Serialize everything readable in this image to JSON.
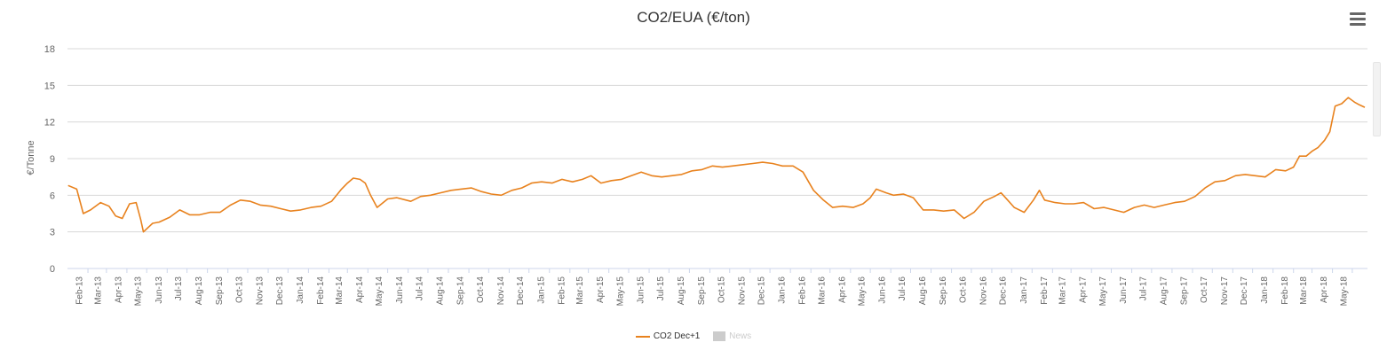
{
  "chart_data": {
    "type": "line",
    "title": "CO2/EUA (€/ton)",
    "ylabel": "€/Tonne",
    "xlabel": "",
    "ylim": [
      0,
      18
    ],
    "yticks": [
      0,
      3,
      6,
      9,
      12,
      15,
      18
    ],
    "grid": true,
    "legend_placement": "bottom-center",
    "x_tick_labels": [
      "Feb-13",
      "Mar-13",
      "Apr-13",
      "May-13",
      "Jun-13",
      "Jul-13",
      "Aug-13",
      "Sep-13",
      "Oct-13",
      "Nov-13",
      "Dec-13",
      "Jan-14",
      "Feb-14",
      "Mar-14",
      "Apr-14",
      "May-14",
      "Jun-14",
      "Jul-14",
      "Aug-14",
      "Sep-14",
      "Oct-14",
      "Nov-14",
      "Dec-14",
      "Jan-15",
      "Feb-15",
      "Mar-15",
      "Apr-15",
      "May-15",
      "Jun-15",
      "Jul-15",
      "Aug-15",
      "Sep-15",
      "Oct-15",
      "Nov-15",
      "Dec-15",
      "Jan-16",
      "Feb-16",
      "Mar-16",
      "Apr-16",
      "May-16",
      "Jun-16",
      "Jul-16",
      "Aug-16",
      "Sep-16",
      "Oct-16",
      "Nov-16",
      "Dec-16",
      "Jan-17",
      "Feb-17",
      "Mar-17",
      "Apr-17",
      "May-17",
      "Jun-17",
      "Jul-17",
      "Aug-17",
      "Sep-17",
      "Oct-17",
      "Nov-17",
      "Dec-17",
      "Jan-18",
      "Feb-18",
      "Mar-18",
      "Apr-18",
      "May-18"
    ],
    "series": [
      {
        "name": "CO2 Dec+1",
        "color": "#e8821e",
        "x": [
          "2013-01-02",
          "2013-01-15",
          "2013-01-25",
          "2013-02-05",
          "2013-02-20",
          "2013-03-05",
          "2013-03-15",
          "2013-03-25",
          "2013-04-05",
          "2013-04-15",
          "2013-04-22",
          "2013-04-26",
          "2013-05-10",
          "2013-05-20",
          "2013-06-05",
          "2013-06-20",
          "2013-07-05",
          "2013-07-20",
          "2013-08-05",
          "2013-08-20",
          "2013-09-05",
          "2013-09-20",
          "2013-10-05",
          "2013-10-20",
          "2013-11-05",
          "2013-11-20",
          "2013-12-05",
          "2013-12-20",
          "2014-01-05",
          "2014-01-20",
          "2014-02-05",
          "2014-02-20",
          "2014-03-01",
          "2014-03-10",
          "2014-03-20",
          "2014-03-28",
          "2014-04-05",
          "2014-04-15",
          "2014-05-01",
          "2014-05-15",
          "2014-06-05",
          "2014-06-20",
          "2014-07-05",
          "2014-07-20",
          "2014-08-05",
          "2014-08-20",
          "2014-09-05",
          "2014-09-20",
          "2014-10-05",
          "2014-10-20",
          "2014-11-05",
          "2014-11-20",
          "2014-12-05",
          "2014-12-20",
          "2015-01-05",
          "2015-01-20",
          "2015-02-05",
          "2015-02-20",
          "2015-03-05",
          "2015-03-20",
          "2015-04-05",
          "2015-04-20",
          "2015-05-05",
          "2015-05-20",
          "2015-06-05",
          "2015-06-20",
          "2015-07-05",
          "2015-07-20",
          "2015-08-05",
          "2015-08-20",
          "2015-09-05",
          "2015-09-20",
          "2015-10-05",
          "2015-10-20",
          "2015-11-05",
          "2015-11-20",
          "2015-12-05",
          "2015-12-20",
          "2016-01-05",
          "2016-01-20",
          "2016-02-05",
          "2016-02-20",
          "2016-03-05",
          "2016-03-20",
          "2016-04-05",
          "2016-04-20",
          "2016-05-01",
          "2016-05-10",
          "2016-05-25",
          "2016-06-05",
          "2016-06-20",
          "2016-07-05",
          "2016-07-20",
          "2016-08-05",
          "2016-08-20",
          "2016-09-05",
          "2016-09-20",
          "2016-10-05",
          "2016-10-20",
          "2016-11-05",
          "2016-11-15",
          "2016-11-25",
          "2016-12-05",
          "2016-12-20",
          "2017-01-03",
          "2017-01-12",
          "2017-01-20",
          "2017-02-05",
          "2017-02-20",
          "2017-03-05",
          "2017-03-20",
          "2017-04-05",
          "2017-04-20",
          "2017-05-05",
          "2017-05-20",
          "2017-06-05",
          "2017-06-20",
          "2017-07-05",
          "2017-07-20",
          "2017-08-05",
          "2017-08-20",
          "2017-09-05",
          "2017-09-20",
          "2017-10-05",
          "2017-10-20",
          "2017-11-05",
          "2017-11-20",
          "2017-12-05",
          "2017-12-20",
          "2018-01-05",
          "2018-01-20",
          "2018-02-01",
          "2018-02-10",
          "2018-02-20",
          "2018-03-01",
          "2018-03-10",
          "2018-03-20",
          "2018-03-28",
          "2018-04-05",
          "2018-04-15",
          "2018-04-25",
          "2018-05-05",
          "2018-05-12",
          "2018-05-20"
        ],
        "y": [
          6.8,
          6.5,
          4.5,
          4.8,
          5.4,
          5.1,
          4.3,
          4.1,
          5.3,
          5.4,
          4.0,
          3.0,
          3.7,
          3.8,
          4.2,
          4.8,
          4.4,
          4.4,
          4.6,
          4.6,
          5.2,
          5.6,
          5.5,
          5.2,
          5.1,
          4.9,
          4.7,
          4.8,
          5.0,
          5.1,
          5.5,
          6.5,
          7.0,
          7.4,
          7.3,
          7.0,
          6.0,
          5.0,
          5.7,
          5.8,
          5.5,
          5.9,
          6.0,
          6.2,
          6.4,
          6.5,
          6.6,
          6.3,
          6.1,
          6.0,
          6.4,
          6.6,
          7.0,
          7.1,
          7.0,
          7.3,
          7.1,
          7.3,
          7.6,
          7.0,
          7.2,
          7.3,
          7.6,
          7.9,
          7.6,
          7.5,
          7.6,
          7.7,
          8.0,
          8.1,
          8.4,
          8.3,
          8.4,
          8.5,
          8.6,
          8.7,
          8.6,
          8.4,
          8.4,
          7.9,
          6.4,
          5.6,
          5.0,
          5.1,
          5.0,
          5.3,
          5.8,
          6.5,
          6.2,
          6.0,
          6.1,
          5.8,
          4.8,
          4.8,
          4.7,
          4.8,
          4.1,
          4.6,
          5.5,
          5.9,
          6.2,
          5.6,
          5.0,
          4.6,
          5.6,
          6.4,
          5.6,
          5.4,
          5.3,
          5.3,
          5.4,
          4.9,
          5.0,
          4.8,
          4.6,
          5.0,
          5.2,
          5.0,
          5.2,
          5.4,
          5.5,
          5.9,
          6.6,
          7.1,
          7.2,
          7.6,
          7.7,
          7.6,
          7.5,
          8.1,
          8.0,
          8.3,
          9.2,
          9.2,
          9.6,
          9.9,
          10.5,
          11.2,
          13.3,
          13.5,
          14.0,
          13.6,
          13.4,
          13.2
        ]
      },
      {
        "name": "News",
        "color": "#cccccc",
        "visible": false
      }
    ]
  }
}
